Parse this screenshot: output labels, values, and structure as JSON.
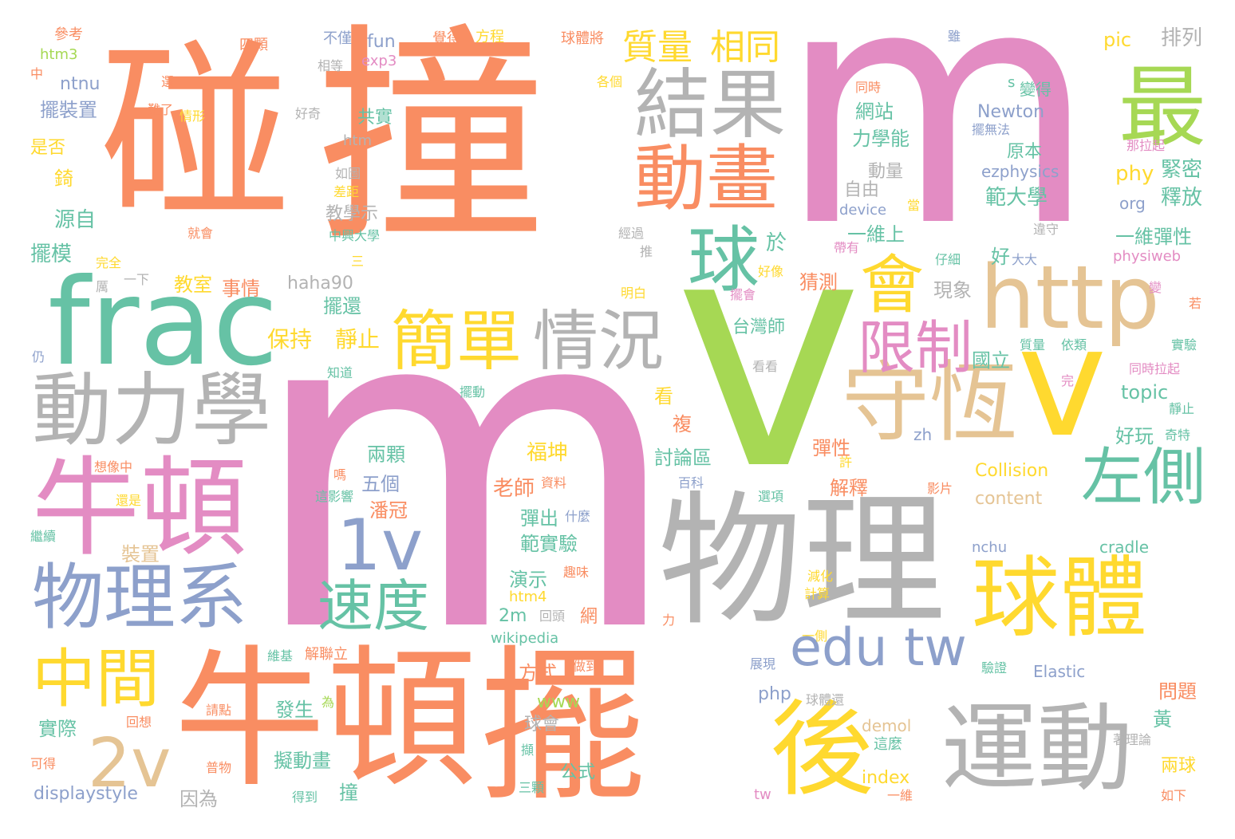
{
  "palette": {
    "orange": "#f98d62",
    "pink": "#e38cc3",
    "green": "#a6d854",
    "teal": "#66c2a5",
    "gray": "#b3b3b3",
    "blue": "#8da0cb",
    "yellow": "#ffd92f",
    "tan": "#e5c494"
  },
  "words": [
    {
      "text": "碰",
      "color": "orange"
    },
    {
      "text": "撞",
      "color": "orange"
    },
    {
      "text": "m",
      "color": "pink"
    },
    {
      "text": "m",
      "color": "pink"
    },
    {
      "text": "v",
      "color": "green"
    },
    {
      "text": "frac",
      "color": "teal"
    },
    {
      "text": "牛頓",
      "color": "orange"
    },
    {
      "text": "擺",
      "color": "orange"
    },
    {
      "text": "物理",
      "color": "gray"
    },
    {
      "text": "http",
      "color": "tan"
    },
    {
      "text": "結果",
      "color": "gray"
    },
    {
      "text": "最",
      "color": "green"
    },
    {
      "text": "動畫",
      "color": "orange"
    },
    {
      "text": "球",
      "color": "teal"
    },
    {
      "text": "會",
      "color": "yellow"
    },
    {
      "text": "守恆",
      "color": "tan"
    },
    {
      "text": "v",
      "color": "yellow"
    },
    {
      "text": "牛頓",
      "color": "pink"
    },
    {
      "text": "動力學",
      "color": "gray"
    },
    {
      "text": "簡單",
      "color": "yellow"
    },
    {
      "text": "情況",
      "color": "gray"
    },
    {
      "text": "限制",
      "color": "pink"
    },
    {
      "text": "左側",
      "color": "teal"
    },
    {
      "text": "物理系",
      "color": "blue"
    },
    {
      "text": "1v",
      "color": "blue"
    },
    {
      "text": "速度",
      "color": "teal"
    },
    {
      "text": "球體",
      "color": "yellow"
    },
    {
      "text": "中間",
      "color": "yellow"
    },
    {
      "text": "2v",
      "color": "tan"
    },
    {
      "text": "edu tw",
      "color": "blue"
    },
    {
      "text": "後",
      "color": "yellow"
    },
    {
      "text": "運動",
      "color": "gray"
    },
    {
      "text": "質量",
      "color": "yellow"
    },
    {
      "text": "相同",
      "color": "yellow"
    },
    {
      "text": "參考",
      "color": "orange"
    },
    {
      "text": "不僅",
      "color": "blue"
    },
    {
      "text": "覺得",
      "color": "orange"
    },
    {
      "text": "方程",
      "color": "yellow"
    },
    {
      "text": "球體將",
      "color": "orange"
    },
    {
      "text": "雖",
      "color": "blue"
    },
    {
      "text": "pic",
      "color": "yellow"
    },
    {
      "text": "排列",
      "color": "gray"
    },
    {
      "text": "htm3",
      "color": "green"
    },
    {
      "text": "四顆",
      "color": "orange"
    },
    {
      "text": "fun",
      "color": "blue"
    },
    {
      "text": "exp3",
      "color": "pink"
    },
    {
      "text": "中",
      "color": "orange"
    },
    {
      "text": "相等",
      "color": "gray"
    },
    {
      "text": "ntnu",
      "color": "blue"
    },
    {
      "text": "選",
      "color": "orange"
    },
    {
      "text": "各個",
      "color": "yellow"
    },
    {
      "text": "同時",
      "color": "orange"
    },
    {
      "text": "s",
      "color": "teal"
    },
    {
      "text": "變得",
      "color": "teal"
    },
    {
      "text": "擺裝置",
      "color": "blue"
    },
    {
      "text": "難了",
      "color": "orange"
    },
    {
      "text": "情形",
      "color": "yellow"
    },
    {
      "text": "好奇",
      "color": "gray"
    },
    {
      "text": "共實",
      "color": "teal"
    },
    {
      "text": "網站",
      "color": "teal"
    },
    {
      "text": "Newton",
      "color": "blue"
    },
    {
      "text": "擺無法",
      "color": "blue"
    },
    {
      "text": "htm",
      "color": "gray"
    },
    {
      "text": "力學能",
      "color": "teal"
    },
    {
      "text": "是否",
      "color": "yellow"
    },
    {
      "text": "原本",
      "color": "teal"
    },
    {
      "text": "那拉起",
      "color": "pink"
    },
    {
      "text": "如圖",
      "color": "gray"
    },
    {
      "text": "動量",
      "color": "gray"
    },
    {
      "text": "ezphysics",
      "color": "blue"
    },
    {
      "text": "phy",
      "color": "yellow"
    },
    {
      "text": "緊密",
      "color": "teal"
    },
    {
      "text": "錡",
      "color": "yellow"
    },
    {
      "text": "差距",
      "color": "yellow"
    },
    {
      "text": "自由",
      "color": "gray"
    },
    {
      "text": "範大學",
      "color": "teal"
    },
    {
      "text": "釋放",
      "color": "teal"
    },
    {
      "text": "源自",
      "color": "teal"
    },
    {
      "text": "教學示",
      "color": "gray"
    },
    {
      "text": "中興大學",
      "color": "teal"
    },
    {
      "text": "device",
      "color": "blue"
    },
    {
      "text": "當",
      "color": "yellow"
    },
    {
      "text": "org",
      "color": "blue"
    },
    {
      "text": "就會",
      "color": "orange"
    },
    {
      "text": "經過",
      "color": "gray"
    },
    {
      "text": "一維上",
      "color": "teal"
    },
    {
      "text": "違守",
      "color": "gray"
    },
    {
      "text": "一維彈性",
      "color": "teal"
    },
    {
      "text": "擺模",
      "color": "teal"
    },
    {
      "text": "完全",
      "color": "yellow"
    },
    {
      "text": "於",
      "color": "teal"
    },
    {
      "text": "推",
      "color": "gray"
    },
    {
      "text": "帶有",
      "color": "pink"
    },
    {
      "text": "好",
      "color": "teal"
    },
    {
      "text": "仔細",
      "color": "teal"
    },
    {
      "text": "大大",
      "color": "blue"
    },
    {
      "text": "physiweb",
      "color": "pink"
    },
    {
      "text": "三",
      "color": "yellow"
    },
    {
      "text": "厲",
      "color": "gray"
    },
    {
      "text": "一下",
      "color": "gray"
    },
    {
      "text": "教室",
      "color": "yellow"
    },
    {
      "text": "事情",
      "color": "orange"
    },
    {
      "text": "haha90",
      "color": "gray"
    },
    {
      "text": "好像",
      "color": "yellow"
    },
    {
      "text": "擺會",
      "color": "pink"
    },
    {
      "text": "猜測",
      "color": "orange"
    },
    {
      "text": "現象",
      "color": "gray"
    },
    {
      "text": "變",
      "color": "pink"
    },
    {
      "text": "明白",
      "color": "yellow"
    },
    {
      "text": "擺還",
      "color": "teal"
    },
    {
      "text": "若",
      "color": "orange"
    },
    {
      "text": "保持",
      "color": "yellow"
    },
    {
      "text": "靜止",
      "color": "yellow"
    },
    {
      "text": "台灣師",
      "color": "teal"
    },
    {
      "text": "仍",
      "color": "blue"
    },
    {
      "text": "看看",
      "color": "gray"
    },
    {
      "text": "國立",
      "color": "teal"
    },
    {
      "text": "質量",
      "color": "teal"
    },
    {
      "text": "依類",
      "color": "teal"
    },
    {
      "text": "實驗",
      "color": "teal"
    },
    {
      "text": "知道",
      "color": "teal"
    },
    {
      "text": "同時拉起",
      "color": "pink"
    },
    {
      "text": "擺動",
      "color": "teal"
    },
    {
      "text": "看",
      "color": "yellow"
    },
    {
      "text": "完",
      "color": "pink"
    },
    {
      "text": "topic",
      "color": "teal"
    },
    {
      "text": "靜止",
      "color": "teal"
    },
    {
      "text": "複",
      "color": "orange"
    },
    {
      "text": "zh",
      "color": "blue"
    },
    {
      "text": "好玩",
      "color": "teal"
    },
    {
      "text": "奇特",
      "color": "teal"
    },
    {
      "text": "想像中",
      "color": "orange"
    },
    {
      "text": "兩顆",
      "color": "teal"
    },
    {
      "text": "福坤",
      "color": "yellow"
    },
    {
      "text": "討論區",
      "color": "teal"
    },
    {
      "text": "彈性",
      "color": "orange"
    },
    {
      "text": "許",
      "color": "yellow"
    },
    {
      "text": "嗎",
      "color": "orange"
    },
    {
      "text": "五個",
      "color": "blue"
    },
    {
      "text": "老師",
      "color": "orange"
    },
    {
      "text": "資料",
      "color": "orange"
    },
    {
      "text": "百科",
      "color": "blue"
    },
    {
      "text": "Collision",
      "color": "yellow"
    },
    {
      "text": "還是",
      "color": "yellow"
    },
    {
      "text": "這影響",
      "color": "teal"
    },
    {
      "text": "潘冠",
      "color": "orange"
    },
    {
      "text": "彈出",
      "color": "teal"
    },
    {
      "text": "什麼",
      "color": "blue"
    },
    {
      "text": "選項",
      "color": "teal"
    },
    {
      "text": "解釋",
      "color": "orange"
    },
    {
      "text": "影片",
      "color": "orange"
    },
    {
      "text": "content",
      "color": "tan"
    },
    {
      "text": "繼續",
      "color": "teal"
    },
    {
      "text": "裝置",
      "color": "tan"
    },
    {
      "text": "範實驗",
      "color": "teal"
    },
    {
      "text": "nchu",
      "color": "blue"
    },
    {
      "text": "cradle",
      "color": "teal"
    },
    {
      "text": "演示",
      "color": "teal"
    },
    {
      "text": "趣味",
      "color": "orange"
    },
    {
      "text": "減化",
      "color": "yellow"
    },
    {
      "text": "htm4",
      "color": "yellow"
    },
    {
      "text": "網",
      "color": "orange"
    },
    {
      "text": "計算",
      "color": "yellow"
    },
    {
      "text": "2m",
      "color": "teal"
    },
    {
      "text": "回頭",
      "color": "gray"
    },
    {
      "text": "力",
      "color": "orange"
    },
    {
      "text": "wikipedia",
      "color": "teal"
    },
    {
      "text": "一側",
      "color": "yellow"
    },
    {
      "text": "維基",
      "color": "teal"
    },
    {
      "text": "解聯立",
      "color": "orange"
    },
    {
      "text": "展現",
      "color": "blue"
    },
    {
      "text": "驗證",
      "color": "teal"
    },
    {
      "text": "Elastic",
      "color": "blue"
    },
    {
      "text": "方式",
      "color": "orange"
    },
    {
      "text": "做到",
      "color": "orange"
    },
    {
      "text": "問題",
      "color": "orange"
    },
    {
      "text": "www",
      "color": "green"
    },
    {
      "text": "php",
      "color": "blue"
    },
    {
      "text": "球體還",
      "color": "gray"
    },
    {
      "text": "發生",
      "color": "teal"
    },
    {
      "text": "為",
      "color": "green"
    },
    {
      "text": "請點",
      "color": "orange"
    },
    {
      "text": "實際",
      "color": "teal"
    },
    {
      "text": "回想",
      "color": "orange"
    },
    {
      "text": "球會",
      "color": "gray"
    },
    {
      "text": "demol",
      "color": "tan"
    },
    {
      "text": "黃",
      "color": "teal"
    },
    {
      "text": "這麼",
      "color": "teal"
    },
    {
      "text": "著理論",
      "color": "gray"
    },
    {
      "text": "擬動畫",
      "color": "teal"
    },
    {
      "text": "可得",
      "color": "orange"
    },
    {
      "text": "普物",
      "color": "orange"
    },
    {
      "text": "擷",
      "color": "teal"
    },
    {
      "text": "公式",
      "color": "teal"
    },
    {
      "text": "兩球",
      "color": "yellow"
    },
    {
      "text": "index",
      "color": "yellow"
    },
    {
      "text": "displaystyle",
      "color": "blue"
    },
    {
      "text": "因為",
      "color": "gray"
    },
    {
      "text": "得到",
      "color": "teal"
    },
    {
      "text": "撞",
      "color": "teal"
    },
    {
      "text": "三顆",
      "color": "teal"
    },
    {
      "text": "一維",
      "color": "orange"
    },
    {
      "text": "tw",
      "color": "pink"
    },
    {
      "text": "如下",
      "color": "orange"
    }
  ]
}
